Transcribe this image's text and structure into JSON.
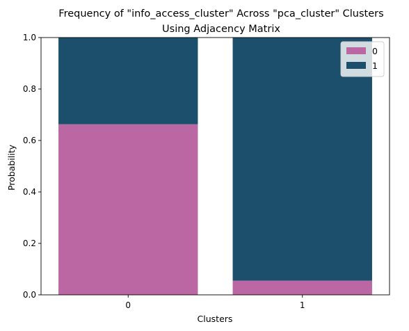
{
  "chart_data": {
    "type": "bar",
    "stacked": true,
    "title_lines": [
      "Frequency of \"info_access_cluster\" Across \"pca_cluster\" Clusters",
      "Using Adjacency Matrix"
    ],
    "xlabel": "Clusters",
    "ylabel": "Probability",
    "categories": [
      "0",
      "1"
    ],
    "ylim": [
      0,
      1.0
    ],
    "yticks": [
      "0.0",
      "0.2",
      "0.4",
      "0.6",
      "0.8",
      "1.0"
    ],
    "series": [
      {
        "name": "0",
        "color": "#bb67a4",
        "values": [
          0.663,
          0.055
        ]
      },
      {
        "name": "1",
        "color": "#1b4f6b",
        "values": [
          0.337,
          0.945
        ]
      }
    ],
    "legend_position": "upper-right",
    "grid": false
  }
}
